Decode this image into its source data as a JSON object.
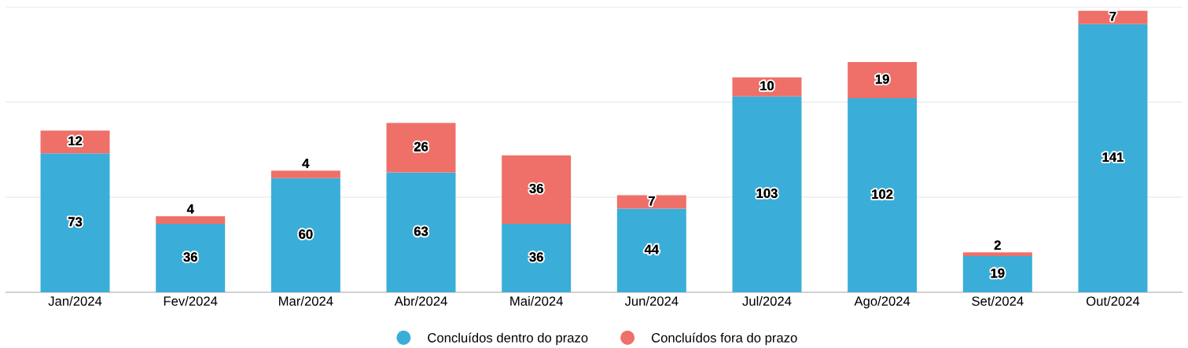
{
  "chart_data": {
    "type": "bar",
    "stacked": true,
    "categories": [
      "Jan/2024",
      "Fev/2024",
      "Mar/2024",
      "Abr/2024",
      "Mai/2024",
      "Jun/2024",
      "Jul/2024",
      "Ago/2024",
      "Set/2024",
      "Out/2024"
    ],
    "series": [
      {
        "name": "Concluídos dentro do prazo",
        "color": "#3aaed8",
        "values": [
          73,
          36,
          60,
          63,
          36,
          44,
          103,
          102,
          19,
          141
        ]
      },
      {
        "name": "Concluídos fora do prazo",
        "color": "#ee7068",
        "values": [
          12,
          4,
          4,
          26,
          36,
          7,
          10,
          19,
          2,
          7
        ]
      }
    ],
    "ylim": [
      0,
      150
    ],
    "yticks": [
      {
        "value": 0,
        "label": null
      },
      {
        "value": 50,
        "label": null
      },
      {
        "value": 100,
        "label": null
      },
      {
        "value": 150,
        "label": null
      }
    ],
    "tick_labels": "x",
    "grid": "y",
    "legend": "bottom",
    "data_labels": true
  }
}
